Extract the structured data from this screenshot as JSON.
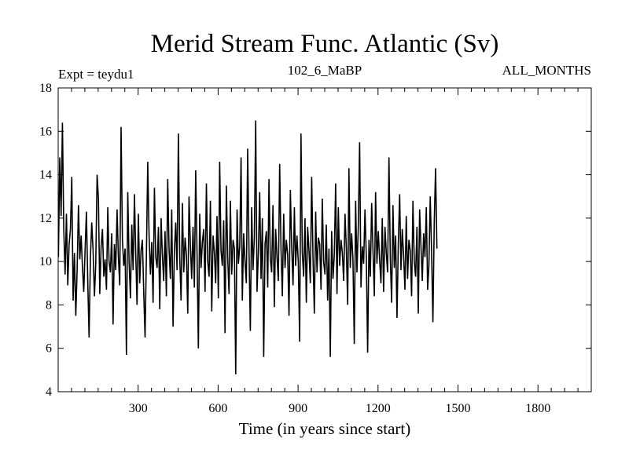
{
  "chart_data": {
    "type": "line",
    "title": "Merid Stream Func. Atlantic (Sv)",
    "left_label": "Expt = teydu1",
    "center_label": "102_6_MaBP",
    "right_label": "ALL_MONTHS",
    "xlabel": "Time (in years since start)",
    "ylabel": "",
    "xlim": [
      0,
      2000
    ],
    "ylim": [
      4,
      18
    ],
    "x_ticks": [
      300,
      600,
      900,
      1200,
      1500,
      1800
    ],
    "y_ticks": [
      4,
      6,
      8,
      10,
      12,
      14,
      16,
      18
    ],
    "grid": false,
    "line_color": "#000000",
    "series": [
      {
        "x_start": 1,
        "x_step": 5,
        "values": [
          10.2,
          14.8,
          12.1,
          16.4,
          11.5,
          9.4,
          12.2,
          8.9,
          10.8,
          11.5,
          13.9,
          8.2,
          10.4,
          7.5,
          9.6,
          12.6,
          10.1,
          11.2,
          9.8,
          8.6,
          10.5,
          12.3,
          9.1,
          6.5,
          10.2,
          11.8,
          10.5,
          8.4,
          9.9,
          14.0,
          12.9,
          8.5,
          10.7,
          11.5,
          9.3,
          10.1,
          8.7,
          12.5,
          10.0,
          9.5,
          11.3,
          7.1,
          10.8,
          9.6,
          12.4,
          10.2,
          8.9,
          16.2,
          11.0,
          9.8,
          10.6,
          5.7,
          13.2,
          10.0,
          8.3,
          11.7,
          9.6,
          13.1,
          10.4,
          8.0,
          12.2,
          9.0,
          10.5,
          11.0,
          8.6,
          6.5,
          10.3,
          14.6,
          11.2,
          9.4,
          10.9,
          8.1,
          13.4,
          10.2,
          9.7,
          11.6,
          7.8,
          12.0,
          10.3,
          9.1,
          11.4,
          8.4,
          13.8,
          10.6,
          9.2,
          12.4,
          7.0,
          10.5,
          11.8,
          9.6,
          15.9,
          10.2,
          8.2,
          12.7,
          9.5,
          11.1,
          10.3,
          7.6,
          13.0,
          10.8,
          9.2,
          11.6,
          8.8,
          14.2,
          10.4,
          6.0,
          12.2,
          9.7,
          10.9,
          11.5,
          8.6,
          13.6,
          10.0,
          9.3,
          12.8,
          7.7,
          11.2,
          10.4,
          9.0,
          12.1,
          8.3,
          14.6,
          10.5,
          9.8,
          11.9,
          6.7,
          13.5,
          10.2,
          8.5,
          12.8,
          9.4,
          11.0,
          10.6,
          4.8,
          12.4,
          9.9,
          10.7,
          14.8,
          8.2,
          11.3,
          10.0,
          9.0,
          15.2,
          10.5,
          6.8,
          12.5,
          9.6,
          11.1,
          16.5,
          8.6,
          10.4,
          13.2,
          9.2,
          12.0,
          5.6,
          10.8,
          11.4,
          8.8,
          13.8,
          10.1,
          9.5,
          12.6,
          7.9,
          11.5,
          10.2,
          9.1,
          14.5,
          10.6,
          8.4,
          12.2,
          9.7,
          11.0,
          10.3,
          7.5,
          13.3,
          10.7,
          8.9,
          12.5,
          9.8,
          11.2,
          10.0,
          6.3,
          15.9,
          10.4,
          9.3,
          12.0,
          8.1,
          11.6,
          10.5,
          9.0,
          13.9,
          10.2,
          7.6,
          12.3,
          9.5,
          11.1,
          10.8,
          8.7,
          12.9,
          10.0,
          9.4,
          11.7,
          8.2,
          10.6,
          5.6,
          11.4,
          9.2,
          10.3,
          13.6,
          8.5,
          12.5,
          9.8,
          11.0,
          10.4,
          9.1,
          12.2,
          10.6,
          8.0,
          14.3,
          9.7,
          11.3,
          10.1,
          6.2,
          12.8,
          9.5,
          11.6,
          15.5,
          8.8,
          10.7,
          9.9,
          12.4,
          10.2,
          5.8,
          11.0,
          9.3,
          12.7,
          10.5,
          8.4,
          13.2,
          9.9,
          11.4,
          10.1,
          9.0,
          12.0,
          8.6,
          11.6,
          10.4,
          9.5,
          14.8,
          10.2,
          8.1,
          12.6,
          9.7,
          11.2,
          7.4,
          10.8,
          13.1,
          9.6,
          11.5,
          10.3,
          8.7,
          12.1,
          9.2,
          11.0,
          10.5,
          8.4,
          12.8,
          10.0,
          9.3,
          11.6,
          7.6,
          12.4,
          10.7,
          9.1,
          11.3,
          10.2,
          12.5,
          8.7,
          9.8,
          13.0,
          10.5,
          7.2,
          11.8,
          14.3,
          10.6
        ]
      }
    ]
  }
}
